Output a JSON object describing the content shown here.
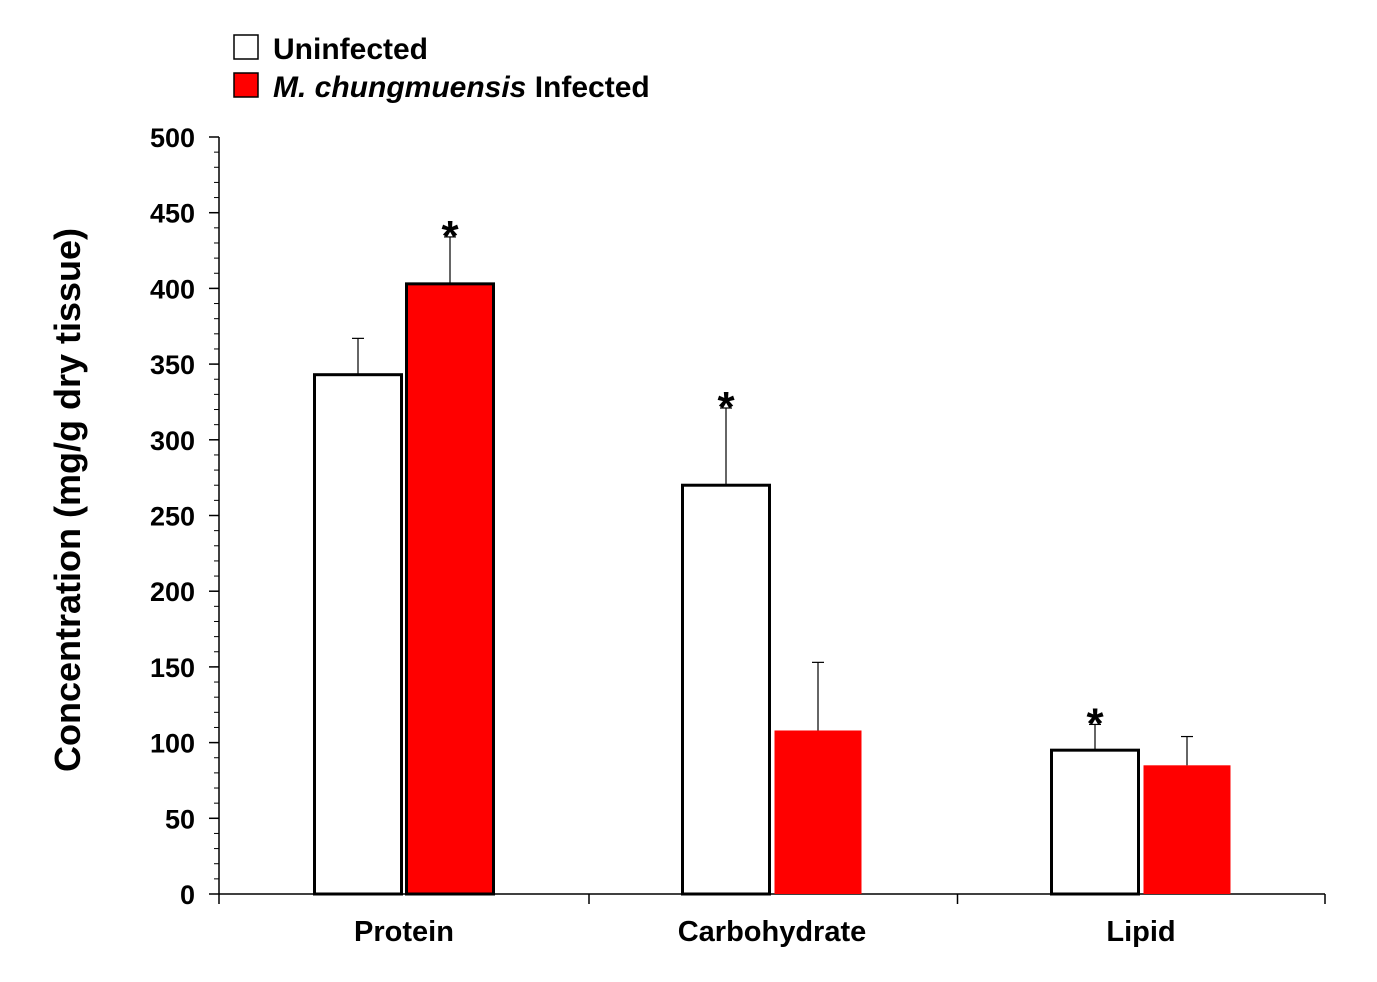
{
  "chart_data": {
    "type": "bar",
    "title": "",
    "xlabel": "",
    "ylabel": "Concentration (mg/g dry tissue)",
    "ylim": [
      0,
      500
    ],
    "yticks": [
      0,
      50,
      100,
      150,
      200,
      250,
      300,
      350,
      400,
      450,
      500
    ],
    "y_minor_step": 10,
    "grid": false,
    "legend_position": "top-left",
    "categories": [
      "Protein",
      "Carbohydrate",
      "Lipid"
    ],
    "series": [
      {
        "name": "Uninfected",
        "name_parts": [
          {
            "text": "Uninfected",
            "italic": false
          }
        ],
        "color": "#ffffff",
        "stroke": "#000000",
        "values": [
          343,
          270,
          95
        ],
        "error": [
          24,
          51,
          17
        ],
        "significant": [
          false,
          true,
          true
        ]
      },
      {
        "name": "M. chungmuensis Infected",
        "name_parts": [
          {
            "text": "M. chungmuensis",
            "italic": true
          },
          {
            "text": " Infected",
            "italic": false
          }
        ],
        "color": "#ff0000",
        "stroke": "#000000",
        "values": [
          403,
          108,
          85
        ],
        "error": [
          31,
          45,
          19
        ],
        "significant": [
          true,
          false,
          false
        ]
      }
    ],
    "significance_symbol": "*"
  }
}
